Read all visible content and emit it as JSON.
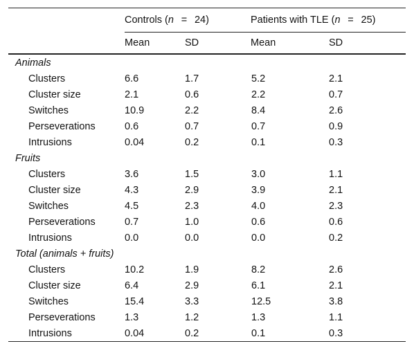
{
  "header": {
    "controls": {
      "label": "Controls (",
      "n": "n",
      "eq": "=",
      "count": "24)"
    },
    "patients": {
      "label": "Patients with TLE (",
      "n": "n",
      "eq": "=",
      "count": "25)"
    },
    "sub": [
      "Mean",
      "SD",
      "Mean",
      "SD"
    ]
  },
  "sections": [
    {
      "title": "Animals",
      "rows": [
        {
          "label": "Clusters",
          "values": [
            "6.6",
            "1.7",
            "5.2",
            "2.1"
          ]
        },
        {
          "label": "Cluster size",
          "values": [
            "2.1",
            "0.6",
            "2.2",
            "0.7"
          ]
        },
        {
          "label": "Switches",
          "values": [
            "10.9",
            "2.2",
            "8.4",
            "2.6"
          ]
        },
        {
          "label": "Perseverations",
          "values": [
            "0.6",
            "0.7",
            "0.7",
            "0.9"
          ]
        },
        {
          "label": "Intrusions",
          "values": [
            "0.04",
            "0.2",
            "0.1",
            "0.3"
          ]
        }
      ]
    },
    {
      "title": "Fruits",
      "rows": [
        {
          "label": "Clusters",
          "values": [
            "3.6",
            "1.5",
            "3.0",
            "1.1"
          ]
        },
        {
          "label": "Cluster size",
          "values": [
            "4.3",
            "2.9",
            "3.9",
            "2.1"
          ]
        },
        {
          "label": "Switches",
          "values": [
            "4.5",
            "2.3",
            "4.0",
            "2.3"
          ]
        },
        {
          "label": "Perseverations",
          "values": [
            "0.7",
            "1.0",
            "0.6",
            "0.6"
          ]
        },
        {
          "label": "Intrusions",
          "values": [
            "0.0",
            "0.0",
            "0.0",
            "0.2"
          ]
        }
      ]
    },
    {
      "title": "Total (animals    +    fruits)",
      "rows": [
        {
          "label": "Clusters",
          "values": [
            "10.2",
            "1.9",
            "8.2",
            "2.6"
          ]
        },
        {
          "label": "Cluster size",
          "values": [
            "6.4",
            "2.9",
            "6.1",
            "2.1"
          ]
        },
        {
          "label": "Switches",
          "values": [
            "15.4",
            "3.3",
            "12.5",
            "3.8"
          ]
        },
        {
          "label": "Perseverations",
          "values": [
            "1.3",
            "1.2",
            "1.3",
            "1.1"
          ]
        },
        {
          "label": "Intrusions",
          "values": [
            "0.04",
            "0.2",
            "0.1",
            "0.3"
          ]
        }
      ]
    }
  ]
}
